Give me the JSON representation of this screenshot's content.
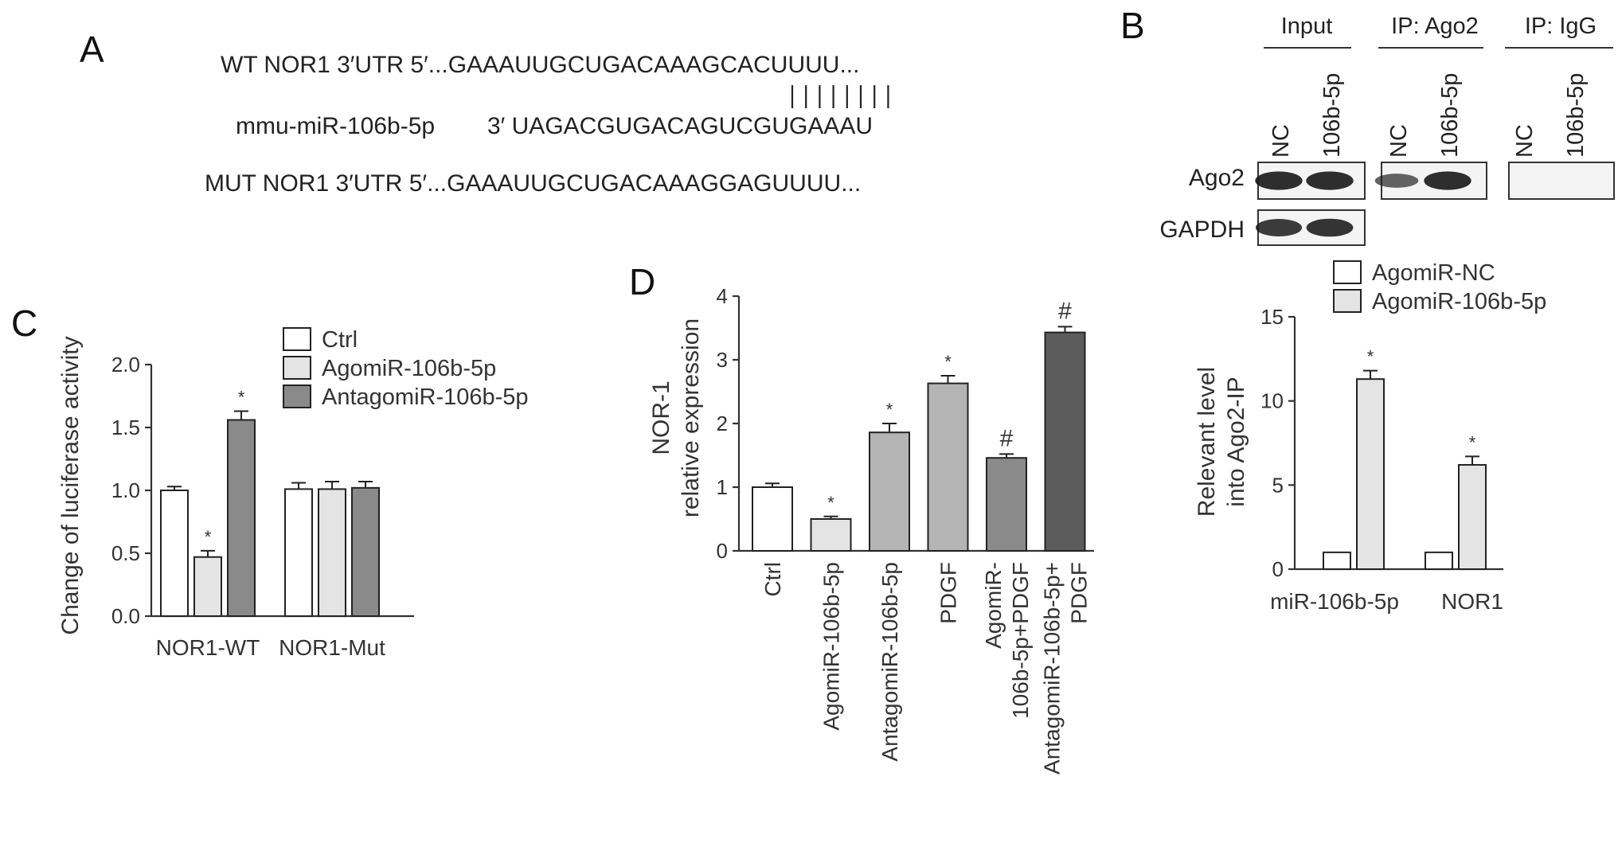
{
  "panel_labels": {
    "a": "A",
    "b": "B",
    "c": "C",
    "d": "D"
  },
  "colors": {
    "white": "#ffffff",
    "light": "#e4e4e4",
    "mid": "#b4b4b4",
    "dark": "#8a8a8a",
    "darker": "#5c5c5c",
    "blot": "#1c1c1c"
  },
  "panel_a": {
    "wt_line": "WT NOR1 3′UTR 5′...GAAAUUGCUGACAAAGCACUUUU...",
    "mir_label": "mmu-miR-106b-5p",
    "mir_seq": "3′  UAGACGUGACAGUCGUGAAAU",
    "mut_line": "MUT NOR1 3′UTR 5′...GAAAUUGCUGACAAAGGAGUUUU...",
    "pair_count": 8
  },
  "panel_b": {
    "groups": [
      "Input",
      "IP: Ago2",
      "IP: IgG"
    ],
    "lanes": [
      "NC",
      "106b-5p"
    ],
    "blot_rows": [
      "Ago2",
      "GAPDH"
    ],
    "band_intensity": {
      "Ago2": {
        "Input": [
          0.95,
          0.95
        ],
        "IP: Ago2": [
          0.55,
          0.95
        ],
        "IP: IgG": [
          0.0,
          0.0
        ]
      },
      "GAPDH": {
        "Input": [
          0.85,
          0.9
        ]
      }
    }
  },
  "chart_data": [
    {
      "id": "C",
      "type": "bar",
      "ylabel": "Change of luciferase activity",
      "ylim": [
        0,
        2.0
      ],
      "yticks": [
        "0.0",
        "0.5",
        "1.0",
        "1.5",
        "2.0"
      ],
      "categories": [
        "NOR1-WT",
        "NOR1-Mut"
      ],
      "legend_position": "top-right",
      "series": [
        {
          "name": "Ctrl",
          "color": "#ffffff",
          "values": [
            1.0,
            1.01
          ],
          "errors": [
            0.03,
            0.05
          ],
          "marks": [
            "",
            ""
          ]
        },
        {
          "name": "AgomiR-106b-5p",
          "color": "#e4e4e4",
          "values": [
            0.47,
            1.01
          ],
          "errors": [
            0.05,
            0.06
          ],
          "marks": [
            "*",
            ""
          ]
        },
        {
          "name": "AntagomiR-106b-5p",
          "color": "#8a8a8a",
          "values": [
            1.56,
            1.02
          ],
          "errors": [
            0.07,
            0.05
          ],
          "marks": [
            "*",
            ""
          ]
        }
      ]
    },
    {
      "id": "D",
      "type": "bar",
      "ylabel_lines": [
        "NOR-1",
        "relative expression"
      ],
      "ylim": [
        0,
        4
      ],
      "yticks": [
        "0",
        "1",
        "2",
        "3",
        "4"
      ],
      "categories": [
        [
          "Ctrl"
        ],
        [
          "AgomiR-106b-5p"
        ],
        [
          "AntagomiR-106b-5p"
        ],
        [
          "PDGF"
        ],
        [
          "AgomiR-",
          "106b-5p+PDGF"
        ],
        [
          "AntagomiR-106b-5p+",
          "PDGF"
        ]
      ],
      "values": [
        1.0,
        0.5,
        1.86,
        2.63,
        1.46,
        3.43
      ],
      "errors": [
        0.06,
        0.04,
        0.14,
        0.12,
        0.06,
        0.09
      ],
      "colors": [
        "#ffffff",
        "#e4e4e4",
        "#b4b4b4",
        "#b4b4b4",
        "#8a8a8a",
        "#5c5c5c"
      ],
      "marks": [
        "",
        "*",
        "*",
        "*",
        "#",
        "#"
      ]
    },
    {
      "id": "B-bar",
      "type": "bar",
      "ylabel_lines": [
        "Relevant level",
        "into Ago2-IP"
      ],
      "ylim": [
        0,
        15
      ],
      "yticks": [
        "0",
        "5",
        "10",
        "15"
      ],
      "categories": [
        "miR-106b-5p",
        "NOR1"
      ],
      "legend_position": "top",
      "series": [
        {
          "name": "AgomiR-NC",
          "color": "#ffffff",
          "values": [
            1.0,
            1.0
          ],
          "errors": [
            0,
            0
          ],
          "marks": [
            "",
            ""
          ]
        },
        {
          "name": "AgomiR-106b-5p",
          "color": "#e4e4e4",
          "values": [
            11.3,
            6.2
          ],
          "errors": [
            0.5,
            0.5
          ],
          "marks": [
            "*",
            "*"
          ]
        }
      ]
    }
  ]
}
